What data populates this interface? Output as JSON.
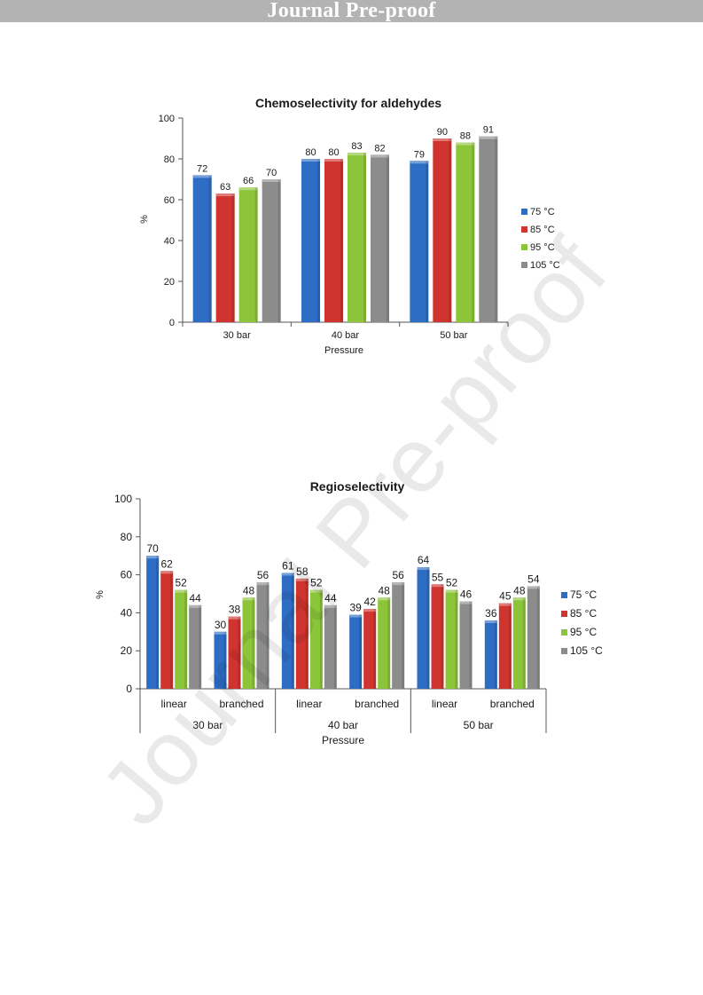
{
  "banner": {
    "text": "Journal Pre-proof"
  },
  "watermark": {
    "text": "Journal Pre-proof"
  },
  "colors": {
    "75C": "#2e6dc4",
    "85C": "#d0342f",
    "95C": "#8cc53a",
    "105C": "#8c8c8c"
  },
  "chart_data": [
    {
      "type": "bar",
      "title": "Chemoselectivity for aldehydes",
      "xlabel": "Pressure",
      "ylabel": "%",
      "ylim": [
        0,
        100
      ],
      "yticks": [
        "0",
        "20",
        "40",
        "60",
        "80",
        "100"
      ],
      "categories": [
        "30 bar",
        "40 bar",
        "50 bar"
      ],
      "legend_position": "right",
      "series": [
        {
          "name": "75 °C",
          "values": [
            72,
            80,
            79
          ]
        },
        {
          "name": "85 °C",
          "values": [
            63,
            80,
            90
          ]
        },
        {
          "name": "95 °C",
          "values": [
            66,
            83,
            88
          ]
        },
        {
          "name": "105 °C",
          "values": [
            70,
            82,
            91
          ]
        }
      ]
    },
    {
      "type": "bar",
      "title": "Regioselectivity",
      "xlabel": "Pressure",
      "ylabel": "%",
      "ylim": [
        0,
        100
      ],
      "yticks": [
        "0",
        "20",
        "40",
        "60",
        "80",
        "100"
      ],
      "groups": [
        "30 bar",
        "40 bar",
        "50 bar"
      ],
      "categories": [
        "linear",
        "branched",
        "linear",
        "branched",
        "linear",
        "branched"
      ],
      "legend_position": "right",
      "series": [
        {
          "name": "75 °C",
          "values": [
            70,
            30,
            61,
            39,
            64,
            36
          ]
        },
        {
          "name": "85 °C",
          "values": [
            62,
            38,
            58,
            42,
            55,
            45
          ]
        },
        {
          "name": "95 °C",
          "values": [
            52,
            48,
            52,
            48,
            52,
            48
          ]
        },
        {
          "name": "105 °C",
          "values": [
            44,
            56,
            44,
            56,
            46,
            54
          ]
        }
      ]
    }
  ]
}
